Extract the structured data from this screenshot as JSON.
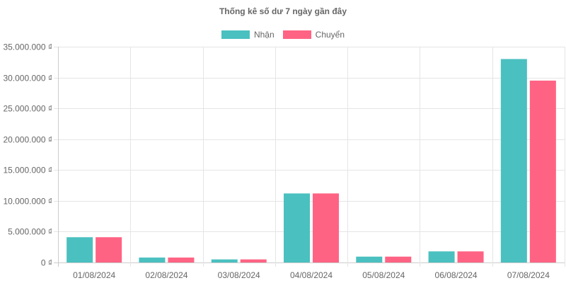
{
  "chart_data": {
    "type": "bar",
    "title": "Thống kê số dư 7 ngày gần đây",
    "categories": [
      "01/08/2024",
      "02/08/2024",
      "03/08/2024",
      "04/08/2024",
      "05/08/2024",
      "06/08/2024",
      "07/08/2024"
    ],
    "series": [
      {
        "name": "Nhận",
        "color": "#4bc0c0",
        "values": [
          4100000,
          800000,
          500000,
          11200000,
          950000,
          1800000,
          33000000
        ]
      },
      {
        "name": "Chuyển",
        "color": "#ff6384",
        "values": [
          4100000,
          800000,
          500000,
          11200000,
          950000,
          1800000,
          29500000
        ]
      }
    ],
    "ylim": [
      0,
      35000000
    ],
    "yticks": [
      0,
      5000000,
      10000000,
      15000000,
      20000000,
      25000000,
      30000000,
      35000000
    ],
    "ytick_labels": [
      "0 ₫",
      "5.000.000 ₫",
      "10.000.000 ₫",
      "15.000.000 ₫",
      "20.000.000 ₫",
      "25.000.000 ₫",
      "30.000.000 ₫",
      "35.000.000 ₫"
    ],
    "grid": true,
    "legend": "top-center"
  }
}
